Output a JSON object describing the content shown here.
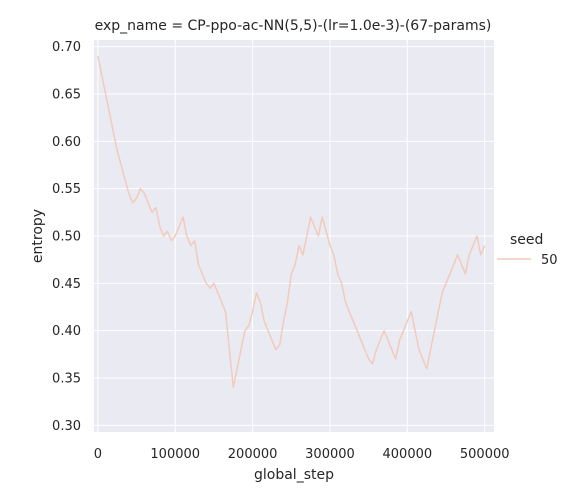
{
  "chart_data": {
    "type": "line",
    "title": "exp_name = CP-ppo-ac-NN(5,5)-(lr=1.0e-3)-(67-params)",
    "xlabel": "global_step",
    "ylabel": "entropy",
    "xlim": [
      -5000,
      512000
    ],
    "ylim": [
      0.293,
      0.707
    ],
    "x_ticks": [
      0,
      100000,
      200000,
      300000,
      400000,
      500000
    ],
    "x_tick_labels": [
      "0",
      "100000",
      "200000",
      "300000",
      "400000",
      "500000"
    ],
    "y_ticks": [
      0.3,
      0.35,
      0.4,
      0.45,
      0.5,
      0.55,
      0.6,
      0.65,
      0.7
    ],
    "y_tick_labels": [
      "0.30",
      "0.35",
      "0.40",
      "0.45",
      "0.50",
      "0.55",
      "0.60",
      "0.65",
      "0.70"
    ],
    "grid": true,
    "background": "#eaeaf2",
    "legend": {
      "title": "seed",
      "placement": "right",
      "entries": [
        {
          "label": "50",
          "color": "#f1cbbd"
        }
      ]
    },
    "series": [
      {
        "name": "50",
        "color": "#f1cbbd",
        "x": [
          0,
          5000,
          10000,
          15000,
          20000,
          25000,
          30000,
          35000,
          40000,
          45000,
          50000,
          55000,
          60000,
          65000,
          70000,
          75000,
          80000,
          85000,
          90000,
          95000,
          100000,
          105000,
          110000,
          115000,
          120000,
          125000,
          130000,
          135000,
          140000,
          145000,
          150000,
          155000,
          160000,
          165000,
          170000,
          175000,
          180000,
          185000,
          190000,
          195000,
          200000,
          205000,
          210000,
          215000,
          220000,
          225000,
          230000,
          235000,
          240000,
          245000,
          250000,
          255000,
          260000,
          265000,
          270000,
          275000,
          280000,
          285000,
          290000,
          295000,
          300000,
          305000,
          310000,
          315000,
          320000,
          325000,
          330000,
          335000,
          340000,
          345000,
          350000,
          355000,
          360000,
          365000,
          370000,
          375000,
          380000,
          385000,
          390000,
          395000,
          400000,
          405000,
          410000,
          415000,
          420000,
          425000,
          430000,
          435000,
          440000,
          445000,
          450000,
          455000,
          460000,
          465000,
          470000,
          475000,
          480000,
          485000,
          490000,
          495000,
          500000
        ],
        "y": [
          0.69,
          0.67,
          0.65,
          0.63,
          0.61,
          0.59,
          0.575,
          0.56,
          0.545,
          0.535,
          0.54,
          0.55,
          0.545,
          0.535,
          0.525,
          0.53,
          0.51,
          0.5,
          0.505,
          0.495,
          0.5,
          0.51,
          0.52,
          0.5,
          0.49,
          0.495,
          0.47,
          0.46,
          0.45,
          0.445,
          0.45,
          0.44,
          0.43,
          0.42,
          0.38,
          0.34,
          0.36,
          0.38,
          0.4,
          0.405,
          0.42,
          0.44,
          0.43,
          0.41,
          0.4,
          0.39,
          0.38,
          0.385,
          0.41,
          0.43,
          0.46,
          0.47,
          0.49,
          0.48,
          0.5,
          0.52,
          0.51,
          0.5,
          0.52,
          0.505,
          0.49,
          0.48,
          0.46,
          0.45,
          0.43,
          0.42,
          0.41,
          0.4,
          0.39,
          0.38,
          0.37,
          0.365,
          0.38,
          0.39,
          0.4,
          0.39,
          0.38,
          0.37,
          0.39,
          0.4,
          0.41,
          0.42,
          0.4,
          0.38,
          0.37,
          0.36,
          0.38,
          0.4,
          0.42,
          0.44,
          0.45,
          0.46,
          0.47,
          0.48,
          0.47,
          0.46,
          0.48,
          0.49,
          0.5,
          0.48,
          0.49
        ]
      }
    ]
  }
}
